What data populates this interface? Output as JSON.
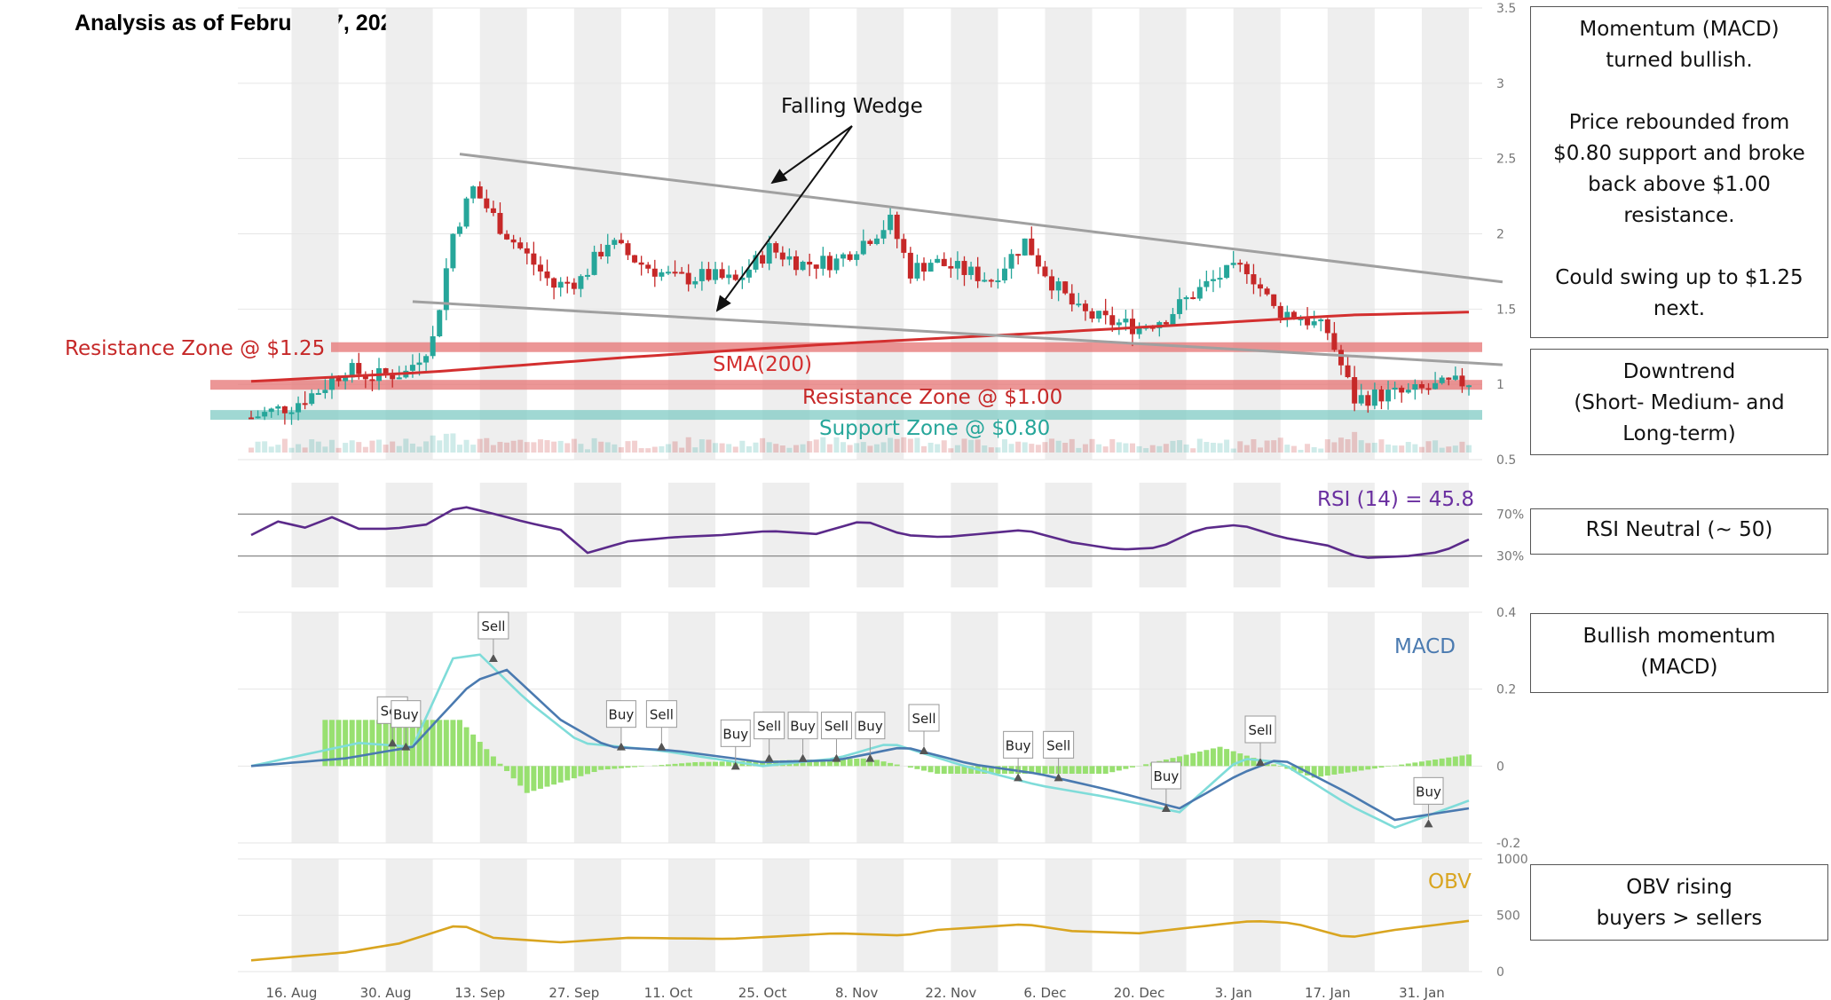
{
  "title": "Analysis as of February 7, 2022",
  "colors": {
    "up": "#26a69a",
    "down": "#c62828",
    "sma": "#d32f2f",
    "resistance": "#e57373",
    "support": "#80cbc4",
    "rsi": "#5b2a8a",
    "macd": "#4a7ab0",
    "signal": "#7fdcd9",
    "hist": "#98e070",
    "obv": "#d9a520",
    "wedge": "#a0a0a0",
    "band": "#eeeeee"
  },
  "notes": [
    {
      "lines": [
        "Momentum (MACD)",
        "turned bullish.",
        "",
        "Price rebounded from",
        "$0.80 support and broke",
        "back above $1.00",
        "resistance.",
        "",
        "Could swing up to $1.25",
        "next."
      ]
    },
    {
      "lines": [
        "Downtrend",
        "(Short- Medium- and",
        "Long-term)"
      ]
    },
    {
      "lines": [
        "RSI Neutral (~ 50)"
      ]
    },
    {
      "lines": [
        "Bullish momentum",
        "(MACD)"
      ]
    },
    {
      "lines": [
        "OBV rising",
        "buyers > sellers"
      ]
    }
  ],
  "annotations": {
    "falling_wedge": "Falling Wedge",
    "sma": "SMA(200)",
    "resistance_125": "Resistance Zone @ $1.25",
    "resistance_100": "Resistance Zone @ $1.00",
    "support_080": "Support Zone @ $0.80",
    "rsi_value": "RSI (14) = 45.8",
    "macd": "MACD",
    "obv": "OBV"
  },
  "chart_data": [
    {
      "type": "candlestick",
      "name": "price",
      "x_ticks": [
        "16. Aug",
        "30. Aug",
        "13. Sep",
        "27. Sep",
        "11. Oct",
        "25. Oct",
        "8. Nov",
        "22. Nov",
        "6. Dec",
        "20. Dec",
        "3. Jan",
        "17. Jan",
        "31. Jan"
      ],
      "y_ticks": [
        "3.5",
        "3",
        "2.5",
        "2",
        "1.5",
        "1",
        "0.5"
      ],
      "ylim": [
        0.5,
        3.5
      ],
      "close_points": [
        [
          "2021-08-10",
          0.78
        ],
        [
          "2021-08-16",
          0.86
        ],
        [
          "2021-08-20",
          0.96
        ],
        [
          "2021-08-24",
          1.1
        ],
        [
          "2021-08-28",
          1.05
        ],
        [
          "2021-09-02",
          1.08
        ],
        [
          "2021-09-06",
          1.3
        ],
        [
          "2021-09-09",
          2.0
        ],
        [
          "2021-09-12",
          2.3
        ],
        [
          "2021-09-16",
          2.05
        ],
        [
          "2021-09-20",
          1.85
        ],
        [
          "2021-09-24",
          1.65
        ],
        [
          "2021-09-28",
          1.7
        ],
        [
          "2021-10-02",
          1.95
        ],
        [
          "2021-10-07",
          1.8
        ],
        [
          "2021-10-12",
          1.7
        ],
        [
          "2021-10-17",
          1.72
        ],
        [
          "2021-10-21",
          1.68
        ],
        [
          "2021-10-26",
          1.9
        ],
        [
          "2021-10-31",
          1.8
        ],
        [
          "2021-11-05",
          1.82
        ],
        [
          "2021-11-09",
          1.95
        ],
        [
          "2021-11-13",
          2.08
        ],
        [
          "2021-11-16",
          1.75
        ],
        [
          "2021-11-19",
          1.82
        ],
        [
          "2021-11-24",
          1.75
        ],
        [
          "2021-11-28",
          1.7
        ],
        [
          "2021-12-03",
          1.95
        ],
        [
          "2021-12-07",
          1.68
        ],
        [
          "2021-12-11",
          1.48
        ],
        [
          "2021-12-15",
          1.42
        ],
        [
          "2021-12-20",
          1.38
        ],
        [
          "2021-12-24",
          1.45
        ],
        [
          "2021-12-28",
          1.6
        ],
        [
          "2022-01-01",
          1.72
        ],
        [
          "2022-01-05",
          1.78
        ],
        [
          "2022-01-09",
          1.5
        ],
        [
          "2022-01-13",
          1.45
        ],
        [
          "2022-01-17",
          1.35
        ],
        [
          "2022-01-21",
          0.9
        ],
        [
          "2022-01-25",
          0.93
        ],
        [
          "2022-01-29",
          0.94
        ],
        [
          "2022-02-02",
          0.98
        ],
        [
          "2022-02-07",
          1.02
        ]
      ],
      "sma200": [
        [
          "2021-08-10",
          1.02
        ],
        [
          "2021-09-05",
          1.08
        ],
        [
          "2021-10-05",
          1.18
        ],
        [
          "2021-11-05",
          1.27
        ],
        [
          "2021-12-05",
          1.34
        ],
        [
          "2022-01-05",
          1.42
        ],
        [
          "2022-01-20",
          1.46
        ],
        [
          "2022-02-07",
          1.48
        ]
      ],
      "wedge_upper": [
        [
          "2021-09-10",
          2.53
        ],
        [
          "2022-02-12",
          1.68
        ]
      ],
      "wedge_lower": [
        [
          "2021-09-03",
          1.55
        ],
        [
          "2022-02-12",
          1.13
        ]
      ],
      "zones": [
        {
          "label": "Resistance Zone @ $1.25",
          "value": 1.25
        },
        {
          "label": "Resistance Zone @ $1.00",
          "value": 1.0
        },
        {
          "label": "Support Zone @ $0.80",
          "value": 0.8
        }
      ]
    },
    {
      "type": "line",
      "name": "RSI (14)",
      "value_label": "RSI (14) = 45.8",
      "levels": [
        "70%",
        "30%"
      ],
      "ylim": [
        0,
        100
      ],
      "points": [
        [
          "2021-08-10",
          50
        ],
        [
          "2021-08-14",
          63
        ],
        [
          "2021-08-18",
          57
        ],
        [
          "2021-08-22",
          67
        ],
        [
          "2021-08-26",
          56
        ],
        [
          "2021-08-31",
          56
        ],
        [
          "2021-09-05",
          60
        ],
        [
          "2021-09-10",
          78
        ],
        [
          "2021-09-14",
          72
        ],
        [
          "2021-09-20",
          62
        ],
        [
          "2021-09-25",
          55
        ],
        [
          "2021-09-29",
          33
        ],
        [
          "2021-10-05",
          44
        ],
        [
          "2021-10-12",
          48
        ],
        [
          "2021-10-19",
          50
        ],
        [
          "2021-10-26",
          54
        ],
        [
          "2021-11-02",
          51
        ],
        [
          "2021-11-09",
          64
        ],
        [
          "2021-11-15",
          50
        ],
        [
          "2021-11-21",
          48
        ],
        [
          "2021-11-28",
          52
        ],
        [
          "2021-12-03",
          55
        ],
        [
          "2021-12-10",
          43
        ],
        [
          "2021-12-17",
          36
        ],
        [
          "2021-12-23",
          38
        ],
        [
          "2021-12-29",
          56
        ],
        [
          "2022-01-04",
          60
        ],
        [
          "2022-01-10",
          48
        ],
        [
          "2022-01-17",
          40
        ],
        [
          "2022-01-22",
          28
        ],
        [
          "2022-01-29",
          30
        ],
        [
          "2022-02-03",
          34
        ],
        [
          "2022-02-07",
          45.8
        ]
      ]
    },
    {
      "type": "line",
      "name": "MACD",
      "y_ticks": [
        "0.4",
        "0.2",
        "0",
        "-0.2"
      ],
      "ylim": [
        -0.2,
        0.4
      ],
      "series": [
        {
          "name": "MACD",
          "points": [
            [
              "2021-08-10",
              0.0
            ],
            [
              "2021-08-24",
              0.02
            ],
            [
              "2021-09-03",
              0.05
            ],
            [
              "2021-09-12",
              0.22
            ],
            [
              "2021-09-17",
              0.25
            ],
            [
              "2021-09-25",
              0.12
            ],
            [
              "2021-10-02",
              0.05
            ],
            [
              "2021-10-12",
              0.04
            ],
            [
              "2021-10-25",
              0.01
            ],
            [
              "2021-11-05",
              0.015
            ],
            [
              "2021-11-15",
              0.05
            ],
            [
              "2021-11-25",
              0.005
            ],
            [
              "2021-12-05",
              -0.02
            ],
            [
              "2021-12-15",
              -0.06
            ],
            [
              "2021-12-26",
              -0.11
            ],
            [
              "2022-01-04",
              -0.02
            ],
            [
              "2022-01-10",
              0.02
            ],
            [
              "2022-01-20",
              -0.07
            ],
            [
              "2022-01-27",
              -0.14
            ],
            [
              "2022-02-07",
              -0.11
            ]
          ]
        },
        {
          "name": "Signal",
          "points": [
            [
              "2021-08-10",
              0.0
            ],
            [
              "2021-08-26",
              0.06
            ],
            [
              "2021-09-03",
              0.05
            ],
            [
              "2021-09-09",
              0.28
            ],
            [
              "2021-09-13",
              0.29
            ],
            [
              "2021-09-20",
              0.17
            ],
            [
              "2021-09-28",
              0.06
            ],
            [
              "2021-10-10",
              0.04
            ],
            [
              "2021-10-25",
              0.0
            ],
            [
              "2021-11-05",
              0.02
            ],
            [
              "2021-11-13",
              0.06
            ],
            [
              "2021-11-24",
              0.0
            ],
            [
              "2021-12-05",
              -0.05
            ],
            [
              "2021-12-15",
              -0.08
            ],
            [
              "2021-12-26",
              -0.12
            ],
            [
              "2022-01-04",
              0.02
            ],
            [
              "2022-01-10",
              0.01
            ],
            [
              "2022-01-20",
              -0.1
            ],
            [
              "2022-01-27",
              -0.16
            ],
            [
              "2022-02-07",
              -0.09
            ]
          ]
        },
        {
          "name": "Histogram",
          "points": [
            [
              "2021-09-10",
              0.12
            ],
            [
              "2021-09-20",
              -0.07
            ],
            [
              "2021-10-01",
              -0.01
            ],
            [
              "2021-10-15",
              0.01
            ],
            [
              "2021-11-10",
              0.02
            ],
            [
              "2021-11-20",
              -0.02
            ],
            [
              "2021-12-15",
              -0.02
            ],
            [
              "2022-01-01",
              0.05
            ],
            [
              "2022-01-15",
              -0.03
            ],
            [
              "2022-02-07",
              0.03
            ]
          ]
        }
      ],
      "signals": [
        {
          "label": "Sell",
          "date": "2021-08-31",
          "value": 0.06
        },
        {
          "label": "Buy",
          "date": "2021-09-02",
          "value": 0.05
        },
        {
          "label": "Sell",
          "date": "2021-09-15",
          "value": 0.28
        },
        {
          "label": "Buy",
          "date": "2021-10-04",
          "value": 0.05
        },
        {
          "label": "Sell",
          "date": "2021-10-10",
          "value": 0.05
        },
        {
          "label": "Buy",
          "date": "2021-10-21",
          "value": 0.0
        },
        {
          "label": "Sell",
          "date": "2021-10-26",
          "value": 0.02
        },
        {
          "label": "Buy",
          "date": "2021-10-31",
          "value": 0.02
        },
        {
          "label": "Sell",
          "date": "2021-11-05",
          "value": 0.02
        },
        {
          "label": "Buy",
          "date": "2021-11-10",
          "value": 0.02
        },
        {
          "label": "Sell",
          "date": "2021-11-18",
          "value": 0.04
        },
        {
          "label": "Buy",
          "date": "2021-12-02",
          "value": -0.03
        },
        {
          "label": "Sell",
          "date": "2021-12-08",
          "value": -0.03
        },
        {
          "label": "Buy",
          "date": "2021-12-24",
          "value": -0.11
        },
        {
          "label": "Sell",
          "date": "2022-01-07",
          "value": 0.01
        },
        {
          "label": "Buy",
          "date": "2022-02-01",
          "value": -0.15
        }
      ]
    },
    {
      "type": "line",
      "name": "OBV",
      "y_ticks": [
        "1000",
        "500",
        "0"
      ],
      "points": [
        [
          "2021-08-10",
          100
        ],
        [
          "2021-08-24",
          170
        ],
        [
          "2021-09-01",
          250
        ],
        [
          "2021-09-10",
          420
        ],
        [
          "2021-09-15",
          300
        ],
        [
          "2021-09-25",
          260
        ],
        [
          "2021-10-05",
          300
        ],
        [
          "2021-10-20",
          290
        ],
        [
          "2021-11-05",
          340
        ],
        [
          "2021-11-15",
          320
        ],
        [
          "2021-11-20",
          370
        ],
        [
          "2021-12-03",
          420
        ],
        [
          "2021-12-10",
          360
        ],
        [
          "2021-12-20",
          340
        ],
        [
          "2022-01-01",
          420
        ],
        [
          "2022-01-06",
          450
        ],
        [
          "2022-01-12",
          430
        ],
        [
          "2022-01-20",
          300
        ],
        [
          "2022-01-27",
          370
        ],
        [
          "2022-02-07",
          450
        ]
      ]
    }
  ]
}
